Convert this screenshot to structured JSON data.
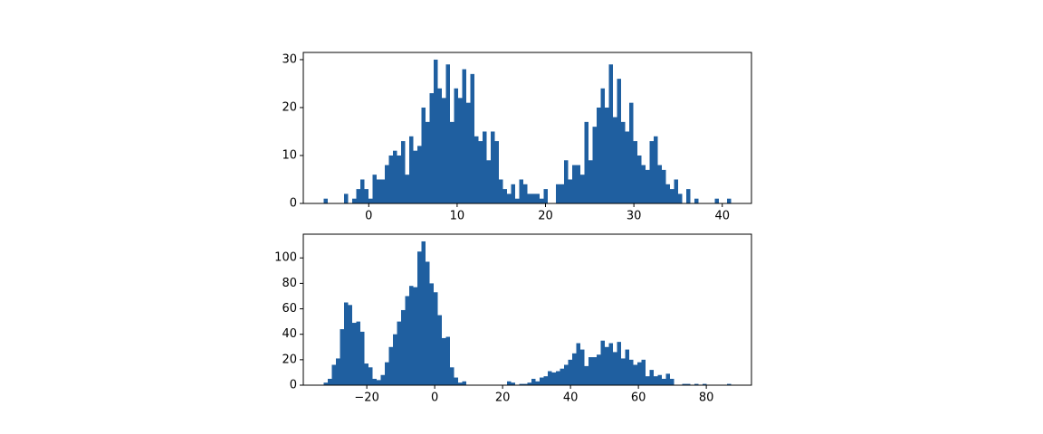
{
  "chart_data": [
    {
      "type": "histogram",
      "color": "#1f5fa0",
      "bins": [
        -5.1,
        -4.639,
        -4.178,
        -3.717,
        -3.256,
        -2.795,
        -2.334,
        -1.873,
        -1.412,
        -0.951,
        -0.49,
        -0.029,
        0.432,
        0.893,
        1.354,
        1.815,
        2.276,
        2.737,
        3.198,
        3.659,
        4.12,
        4.581,
        5.042,
        5.503,
        5.964,
        6.425,
        6.886,
        7.347,
        7.808,
        8.269,
        8.73,
        9.191,
        9.652,
        10.113,
        10.574,
        11.035,
        11.496,
        11.957,
        12.418,
        12.879,
        13.34,
        13.801,
        14.262,
        14.723,
        15.184,
        15.645,
        16.106,
        16.567,
        17.028,
        17.489,
        17.95,
        18.411,
        18.872,
        19.333,
        19.794,
        20.255,
        20.716,
        21.177,
        21.638,
        22.099,
        22.56,
        23.021,
        23.482,
        23.943,
        24.404,
        24.865,
        25.326,
        25.787,
        26.248,
        26.709,
        27.17,
        27.631,
        28.092,
        28.553,
        29.014,
        29.475,
        29.936,
        30.397,
        30.858,
        31.319,
        31.78,
        32.241,
        32.702,
        33.163,
        33.624,
        34.085,
        34.546,
        35.007,
        35.468,
        35.929,
        36.39,
        36.851,
        37.312,
        37.773,
        38.234,
        38.695,
        39.156,
        39.617,
        40.078,
        40.539,
        41.0
      ],
      "values": [
        1,
        0,
        0,
        0,
        0,
        2,
        0,
        1,
        3,
        5,
        3,
        1,
        6,
        5,
        5,
        8,
        10,
        11,
        10,
        13,
        6,
        14,
        11,
        12,
        20,
        17,
        23,
        30,
        24,
        22,
        29,
        17,
        24,
        22,
        28,
        21,
        27,
        14,
        13,
        15,
        9,
        15,
        13,
        5,
        3,
        2,
        4,
        1,
        5,
        4,
        2,
        2,
        2,
        1,
        3,
        0,
        0,
        4,
        4,
        9,
        5,
        8,
        8,
        6,
        17,
        9,
        16,
        20,
        24,
        20,
        29,
        18,
        26,
        17,
        15,
        21,
        13,
        10,
        8,
        7,
        13,
        14,
        8,
        7,
        4,
        3,
        5,
        2,
        0,
        3,
        0,
        1,
        0,
        0,
        0,
        0,
        1,
        0,
        0,
        1
      ],
      "xlim": [
        -7.405,
        43.305
      ],
      "xticks": [
        0,
        10,
        20,
        30,
        40
      ],
      "ylim": [
        0,
        31.5
      ],
      "yticks": [
        0,
        10,
        20,
        30
      ]
    },
    {
      "type": "histogram",
      "color": "#1f5fa0",
      "bins": [
        -32.7,
        -31.5,
        -30.3,
        -29.1,
        -27.9,
        -26.7,
        -25.5,
        -24.3,
        -23.1,
        -21.9,
        -20.7,
        -19.5,
        -18.3,
        -17.1,
        -15.9,
        -14.7,
        -13.5,
        -12.3,
        -11.1,
        -9.9,
        -8.7,
        -7.5,
        -6.3,
        -5.1,
        -3.9,
        -2.7,
        -1.5,
        -0.3,
        0.9,
        2.1,
        3.3,
        4.5,
        5.7,
        6.9,
        8.1,
        9.3,
        10.5,
        11.7,
        12.9,
        14.1,
        15.3,
        16.5,
        17.7,
        18.9,
        20.1,
        21.3,
        22.5,
        23.7,
        24.9,
        26.1,
        27.3,
        28.5,
        29.7,
        30.9,
        32.1,
        33.3,
        34.5,
        35.7,
        36.9,
        38.1,
        39.3,
        40.5,
        41.7,
        42.9,
        44.1,
        45.3,
        46.5,
        47.7,
        48.9,
        50.1,
        51.3,
        52.5,
        53.7,
        54.9,
        56.1,
        57.3,
        58.5,
        59.7,
        60.9,
        62.1,
        63.3,
        64.5,
        65.7,
        66.9,
        68.1,
        69.3,
        70.5,
        71.7,
        72.9,
        74.1,
        75.3,
        76.5,
        77.7,
        78.9,
        80.1,
        81.3,
        82.5,
        83.7,
        84.9,
        86.1,
        87.3
      ],
      "values": [
        2,
        5,
        16,
        21,
        44,
        65,
        63,
        49,
        50,
        42,
        17,
        14,
        5,
        4,
        8,
        18,
        30,
        40,
        50,
        59,
        70,
        78,
        77,
        105,
        113,
        97,
        80,
        73,
        55,
        37,
        38,
        14,
        6,
        2,
        3,
        0,
        0,
        0,
        0,
        0,
        0,
        0,
        0,
        0,
        0,
        3,
        2,
        0,
        1,
        1,
        2,
        5,
        3,
        6,
        7,
        11,
        10,
        11,
        13,
        16,
        20,
        25,
        33,
        28,
        15,
        22,
        22,
        24,
        35,
        30,
        33,
        26,
        34,
        21,
        28,
        20,
        16,
        18,
        20,
        7,
        12,
        7,
        8,
        5,
        9,
        5,
        0,
        0,
        1,
        1,
        0,
        1,
        0,
        1,
        0,
        0,
        0,
        0,
        0,
        1
      ],
      "xlim": [
        -38.7,
        93.3
      ],
      "xticks": [
        {
          "value": -20,
          "label": "−20"
        },
        0,
        20,
        40,
        60,
        80
      ],
      "ylim": [
        0,
        118.65
      ],
      "yticks": [
        0,
        20,
        40,
        60,
        80,
        100
      ]
    }
  ]
}
